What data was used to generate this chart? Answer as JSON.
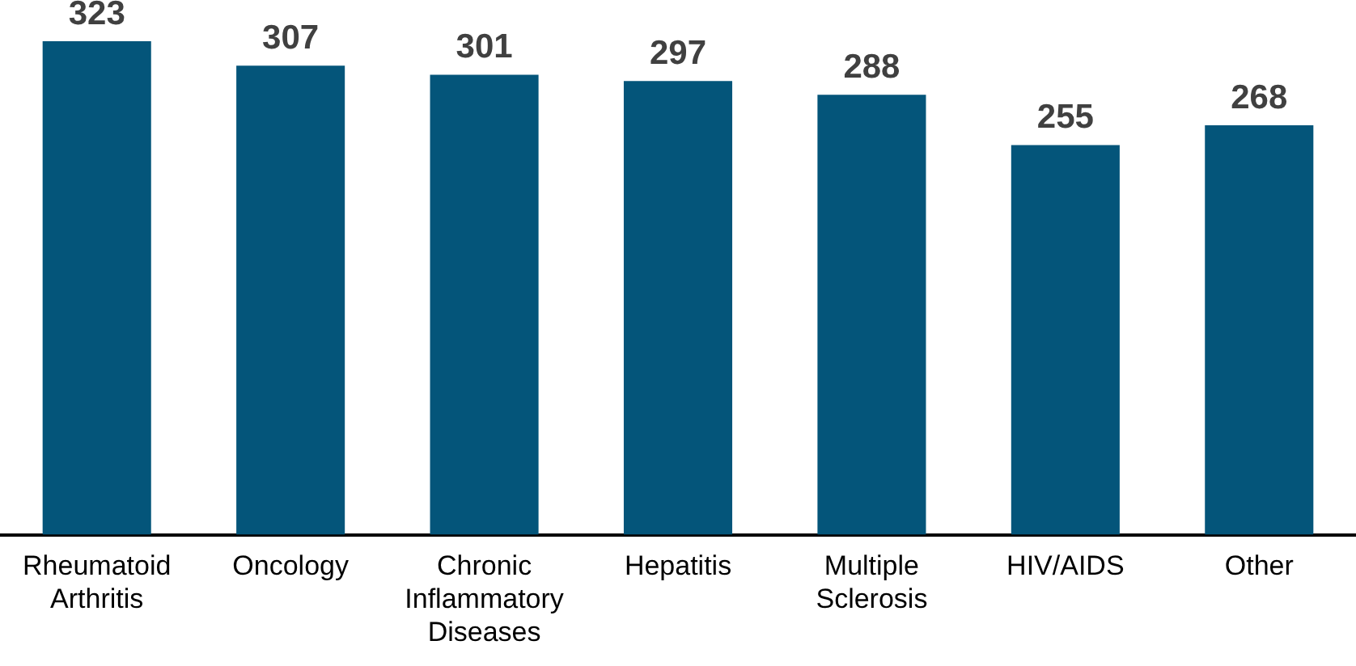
{
  "chart_data": {
    "type": "bar",
    "categories": [
      "Rheumatoid Arthritis",
      "Oncology",
      "Chronic Inflammatory Diseases",
      "Hepatitis",
      "Multiple Sclerosis",
      "HIV/AIDS",
      "Other"
    ],
    "values": [
      323,
      307,
      301,
      297,
      288,
      255,
      268
    ],
    "color": "#04557a",
    "data_labels": true,
    "grid": false,
    "legend": false
  }
}
